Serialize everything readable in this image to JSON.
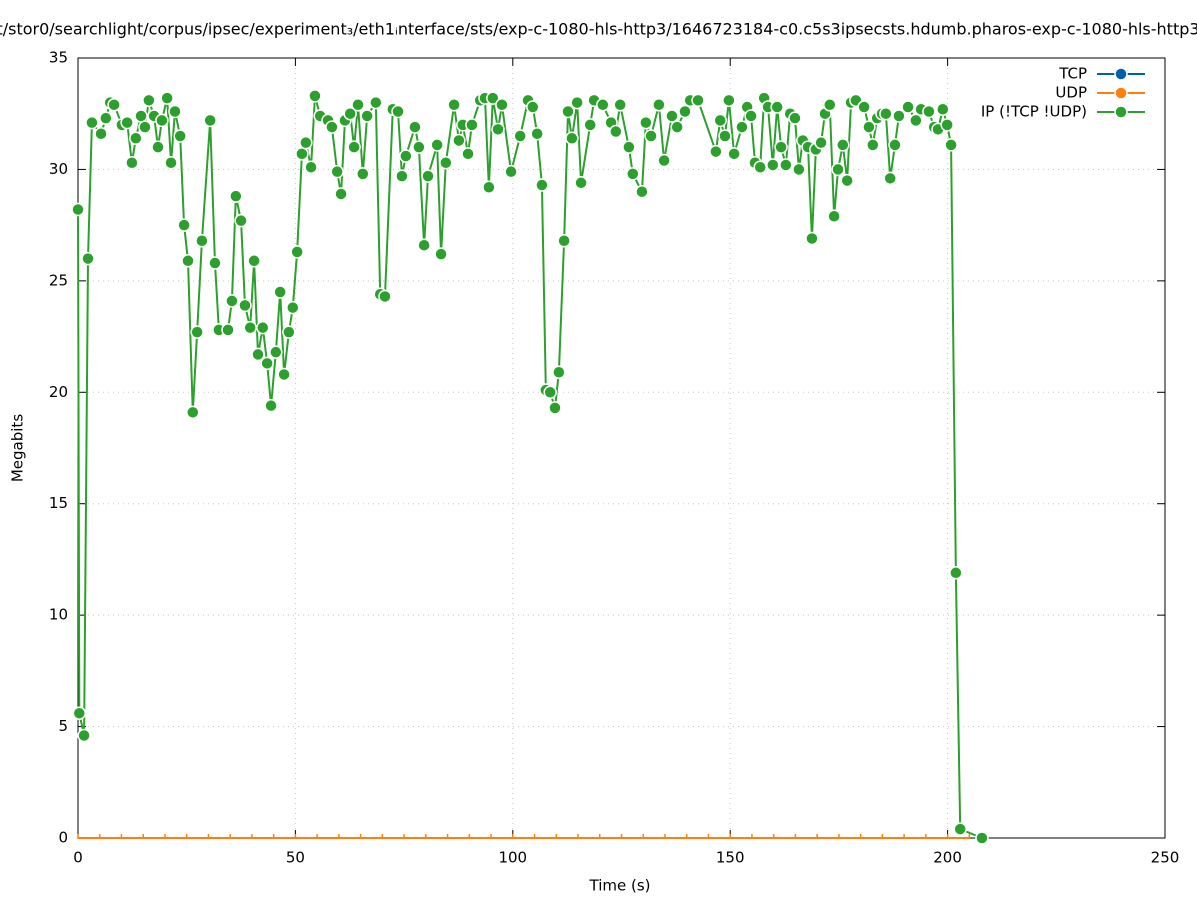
{
  "chart_data": {
    "type": "line",
    "title": "t/stor0/searchlight/corpus/ipsec/experiment₃/eth1ᵢnterface/sts/exp-c-1080-hls-http3/1646723184-c0.c5s3ipsecsts.hdumb.pharos-exp-c-1080-hls-http3",
    "x_label": "Time (s)",
    "y_label": "Megabits",
    "xlim": [
      0,
      250
    ],
    "xticks": [
      0,
      50,
      100,
      150,
      200,
      250
    ],
    "ylim": [
      0,
      35
    ],
    "yticks": [
      0,
      5,
      10,
      15,
      20,
      25,
      30,
      35
    ],
    "grid": true,
    "legend": "top-right",
    "series": [
      {
        "name": "TCP",
        "color": "#0060ad",
        "x": [],
        "values": []
      },
      {
        "name": "UDP",
        "color": "#ff7f0e",
        "x": [
          0,
          5,
          10,
          15,
          20,
          25,
          30,
          35,
          40,
          45,
          50,
          55,
          60,
          65,
          70,
          75,
          80,
          85,
          90,
          95,
          100,
          105,
          110,
          115,
          120,
          125,
          130,
          135,
          140,
          145,
          150,
          155,
          160,
          165,
          170,
          175,
          180,
          185,
          190,
          195,
          200,
          205
        ],
        "values": [
          0,
          0,
          0,
          0,
          0,
          0,
          0,
          0,
          0,
          0,
          0,
          0,
          0,
          0,
          0,
          0,
          0,
          0,
          0,
          0,
          0,
          0,
          0,
          0,
          0,
          0,
          0,
          0,
          0,
          0,
          0,
          0,
          0,
          0,
          0,
          0,
          0,
          0,
          0,
          0,
          0,
          0
        ]
      },
      {
        "name": "IP (!TCP  !UDP)",
        "color": "#2ca02c",
        "x": [
          0,
          0.3,
          1.4,
          2.3,
          3.2,
          5.3,
          6.4,
          7.4,
          8.3,
          10.1,
          11.3,
          12.4,
          13.3,
          14.5,
          15.4,
          16.3,
          17.5,
          18.4,
          19.3,
          20.5,
          21.4,
          22.3,
          23.5,
          24.4,
          25.3,
          26.4,
          27.4,
          28.5,
          30.4,
          31.5,
          32.4,
          34.5,
          35.4,
          36.3,
          37.5,
          38.4,
          39.6,
          40.5,
          41.4,
          42.5,
          43.5,
          44.4,
          45.5,
          46.5,
          47.4,
          48.5,
          49.4,
          50.4,
          51.5,
          52.4,
          53.6,
          54.5,
          55.7,
          57.5,
          58.4,
          59.6,
          60.5,
          61.4,
          62.6,
          63.5,
          64.4,
          65.5,
          66.5,
          68.5,
          69.5,
          70.6,
          72.4,
          73.6,
          74.5,
          75.4,
          77.5,
          78.4,
          79.6,
          80.5,
          82.6,
          83.5,
          84.6,
          86.5,
          87.6,
          88.5,
          89.7,
          90.6,
          92.5,
          93.6,
          94.5,
          95.4,
          96.6,
          97.5,
          99.6,
          101.7,
          103.5,
          104.6,
          105.6,
          106.7,
          107.6,
          108.6,
          109.7,
          110.6,
          111.8,
          112.7,
          113.6,
          114.8,
          115.7,
          117.8,
          118.7,
          120.7,
          122.6,
          123.7,
          124.7,
          126.7,
          127.6,
          129.7,
          130.6,
          131.8,
          133.6,
          134.8,
          136.6,
          137.8,
          139.6,
          140.8,
          142.6,
          146.7,
          147.7,
          148.8,
          149.7,
          150.9,
          152.7,
          153.9,
          154.8,
          155.7,
          156.9,
          157.8,
          158.7,
          159.8,
          160.8,
          161.7,
          162.8,
          163.8,
          164.9,
          165.8,
          166.7,
          167.9,
          168.8,
          169.7,
          170.9,
          171.8,
          172.9,
          173.9,
          174.8,
          175.9,
          176.9,
          177.8,
          178.9,
          180.8,
          181.9,
          182.8,
          183.8,
          184.9,
          185.8,
          186.8,
          187.9,
          188.8,
          190.9,
          192.7,
          193.9,
          195.7,
          196.9,
          197.8,
          198.9,
          199.9,
          200.8,
          201.9,
          202.9,
          207.9
        ],
        "values": [
          28.2,
          5.6,
          4.6,
          26.0,
          32.1,
          31.6,
          32.3,
          33.0,
          32.9,
          32.0,
          32.1,
          30.3,
          31.4,
          32.4,
          31.9,
          33.1,
          32.4,
          31.0,
          32.2,
          33.2,
          30.3,
          32.6,
          31.5,
          27.5,
          25.9,
          19.1,
          22.7,
          26.8,
          32.2,
          25.8,
          22.8,
          22.8,
          24.1,
          28.8,
          27.7,
          23.9,
          22.9,
          25.9,
          21.7,
          22.9,
          21.3,
          19.4,
          21.8,
          24.5,
          20.8,
          22.7,
          23.8,
          26.3,
          30.7,
          31.2,
          30.1,
          33.3,
          32.4,
          32.2,
          31.9,
          29.9,
          28.9,
          32.2,
          32.5,
          31.0,
          32.9,
          29.8,
          32.4,
          33.0,
          24.4,
          24.3,
          32.7,
          32.6,
          29.7,
          30.6,
          31.9,
          31.0,
          26.6,
          29.7,
          31.1,
          26.2,
          30.3,
          32.9,
          31.3,
          32.0,
          30.7,
          32.0,
          33.1,
          33.2,
          29.2,
          33.2,
          31.8,
          32.9,
          29.9,
          31.5,
          33.1,
          32.8,
          31.6,
          29.3,
          20.1,
          20.0,
          19.3,
          20.9,
          26.8,
          32.6,
          31.4,
          33.0,
          29.4,
          32.0,
          33.1,
          32.9,
          32.1,
          31.7,
          32.9,
          31.0,
          29.8,
          29.0,
          32.1,
          31.5,
          32.9,
          30.4,
          32.4,
          31.9,
          32.6,
          33.1,
          33.1,
          30.8,
          32.2,
          31.5,
          33.1,
          30.7,
          31.9,
          32.8,
          32.4,
          30.3,
          30.1,
          33.2,
          32.8,
          30.2,
          32.8,
          31.0,
          30.2,
          32.5,
          32.3,
          30.0,
          31.3,
          31.0,
          26.9,
          30.9,
          31.2,
          32.5,
          32.9,
          27.9,
          30.0,
          31.1,
          29.5,
          33.0,
          33.1,
          32.8,
          31.9,
          31.1,
          32.3,
          32.5,
          32.5,
          29.6,
          31.1,
          32.4,
          32.8,
          32.2,
          32.7,
          32.6,
          31.9,
          31.8,
          32.7,
          32.0,
          31.1,
          11.9,
          0.4,
          0
        ]
      }
    ]
  }
}
